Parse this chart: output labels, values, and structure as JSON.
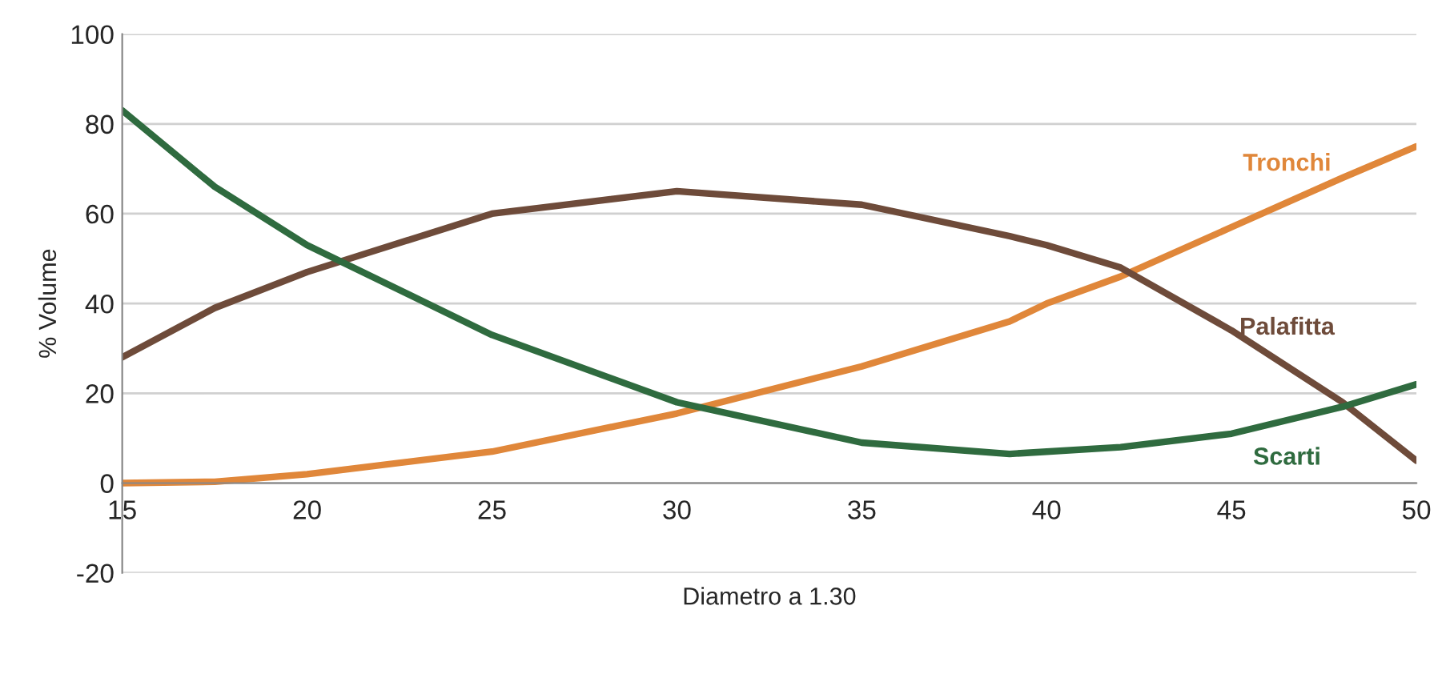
{
  "chart_data": {
    "type": "line",
    "xlabel": "Diametro a 1.30",
    "ylabel": "% Volume",
    "x": [
      15,
      17.5,
      20,
      25,
      30,
      35,
      39,
      40,
      42,
      45,
      48,
      50
    ],
    "series": [
      {
        "name": "Tronchi",
        "color": "#e0873a",
        "values": [
          0,
          0.3,
          2,
          7,
          15.5,
          26,
          36,
          40,
          46,
          57,
          68,
          75
        ]
      },
      {
        "name": "Palafitta",
        "color": "#6e4b3a",
        "values": [
          28,
          39,
          47,
          60,
          65,
          62,
          55,
          53,
          48,
          34,
          18,
          5
        ]
      },
      {
        "name": "Scarti",
        "color": "#2f6b3f",
        "values": [
          83,
          66,
          53,
          33,
          18,
          9,
          6.5,
          7,
          8,
          11,
          17,
          22
        ]
      }
    ],
    "xlim": [
      15,
      50
    ],
    "xticks": [
      15,
      20,
      25,
      30,
      35,
      40,
      45,
      50
    ],
    "ylim": [
      -20,
      100
    ],
    "yticks": [
      -20,
      0,
      20,
      40,
      60,
      80,
      100
    ],
    "grid": "y",
    "legend": false,
    "marker": "none",
    "line_style": "solid"
  }
}
